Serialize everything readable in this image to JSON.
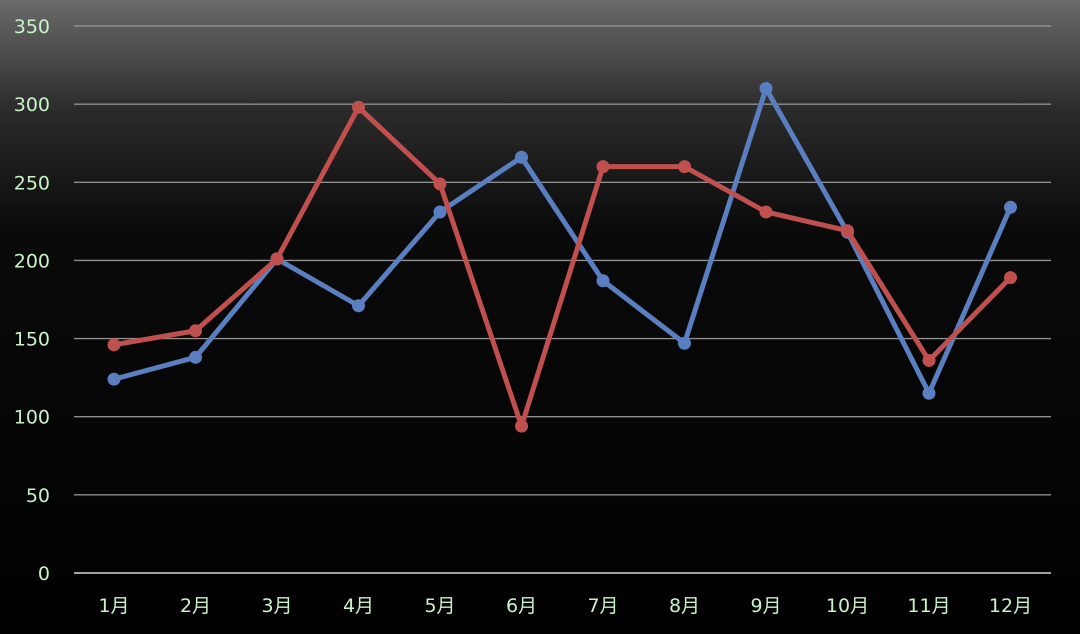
{
  "chart_data": {
    "type": "line",
    "title": "",
    "xlabel": "",
    "ylabel": "",
    "categories": [
      "1月",
      "2月",
      "3月",
      "4月",
      "5月",
      "6月",
      "7月",
      "8月",
      "9月",
      "10月",
      "11月",
      "12月"
    ],
    "ylim": [
      0,
      350
    ],
    "yticks": [
      0,
      50,
      100,
      150,
      200,
      250,
      300,
      350
    ],
    "grid": true,
    "legend": "none",
    "series": [
      {
        "color": "#5a7fc0",
        "values": [
          124,
          138,
          201,
          171,
          231,
          266,
          187,
          147,
          310,
          218,
          115,
          234
        ]
      },
      {
        "color": "#c0504d",
        "values": [
          146,
          155,
          201,
          298,
          249,
          94,
          260,
          260,
          231,
          219,
          136,
          189
        ]
      }
    ]
  }
}
